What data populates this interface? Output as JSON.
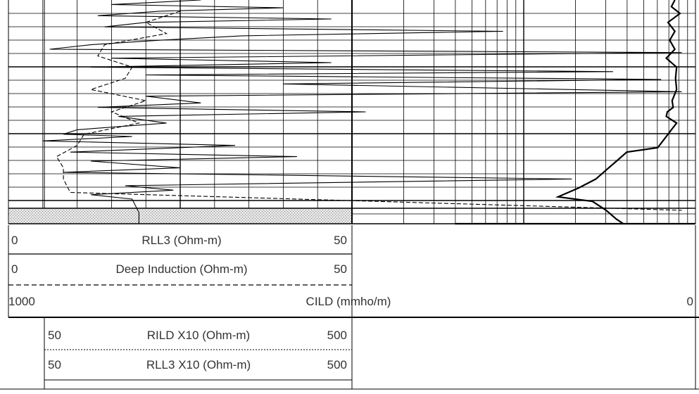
{
  "chart_data": {
    "type": "line",
    "title": "",
    "tracks": [
      {
        "name": "resistivity-track",
        "grid": true,
        "xlim": [
          0,
          50
        ],
        "series": [
          {
            "name": "RLL3 (Ohm-m)",
            "style": "solid",
            "points": [
              [
                28,
                0
              ],
              [
                15,
                0.02
              ],
              [
                40,
                0.035
              ],
              [
                22,
                0.05
              ],
              [
                13,
                0.07
              ],
              [
                47,
                0.085
              ],
              [
                20,
                0.1
              ],
              [
                14,
                0.12
              ],
              [
                72,
                0.14
              ],
              [
                34,
                0.16
              ],
              [
                22,
                0.18
              ],
              [
                12,
                0.2
              ],
              [
                6,
                0.22
              ],
              [
                98,
                0.235
              ],
              [
                15,
                0.26
              ],
              [
                47,
                0.28
              ],
              [
                12,
                0.3
              ],
              [
                88,
                0.32
              ],
              [
                20,
                0.335
              ],
              [
                95,
                0.355
              ],
              [
                40,
                0.375
              ],
              [
                98,
                0.41
              ],
              [
                20,
                0.43
              ],
              [
                28,
                0.46
              ],
              [
                13,
                0.48
              ],
              [
                52,
                0.5
              ],
              [
                16,
                0.52
              ],
              [
                23,
                0.55
              ],
              [
                10,
                0.58
              ],
              [
                8,
                0.6
              ],
              [
                18,
                0.61
              ],
              [
                5,
                0.63
              ],
              [
                33,
                0.65
              ],
              [
                9,
                0.68
              ],
              [
                42,
                0.7
              ],
              [
                12,
                0.72
              ],
              [
                25,
                0.75
              ],
              [
                8,
                0.77
              ],
              [
                82,
                0.8
              ],
              [
                17,
                0.83
              ],
              [
                24,
                0.85
              ],
              [
                12,
                0.87
              ],
              [
                18,
                0.89
              ],
              [
                19,
                0.95
              ],
              [
                19,
                1
              ]
            ]
          },
          {
            "name": "Deep Induction (Ohm-m)",
            "style": "dashed",
            "points": [
              [
                25,
                0.05
              ],
              [
                20,
                0.1
              ],
              [
                23,
                0.15
              ],
              [
                14,
                0.2
              ],
              [
                13,
                0.25
              ],
              [
                18,
                0.3
              ],
              [
                17,
                0.35
              ],
              [
                12,
                0.4
              ],
              [
                20,
                0.45
              ],
              [
                15,
                0.5
              ],
              [
                19,
                0.55
              ],
              [
                11,
                0.6
              ],
              [
                10,
                0.65
              ],
              [
                7,
                0.7
              ],
              [
                8,
                0.75
              ],
              [
                8,
                0.8
              ],
              [
                9,
                0.86
              ],
              [
                98,
                0.94
              ]
            ]
          }
        ]
      },
      {
        "name": "conductivity-track",
        "grid": true,
        "xlim": [
          1000,
          0
        ],
        "series": [
          {
            "name": "CILD (mmho/m)",
            "style": "solid",
            "points": [
              [
                60,
                0
              ],
              [
                70,
                0.03
              ],
              [
                45,
                0.06
              ],
              [
                80,
                0.1
              ],
              [
                60,
                0.14
              ],
              [
                75,
                0.18
              ],
              [
                60,
                0.22
              ],
              [
                85,
                0.26
              ],
              [
                55,
                0.3
              ],
              [
                58,
                0.35
              ],
              [
                55,
                0.4
              ],
              [
                68,
                0.45
              ],
              [
                65,
                0.48
              ],
              [
                82,
                0.5
              ],
              [
                85,
                0.52
              ],
              [
                55,
                0.55
              ],
              [
                70,
                0.58
              ],
              [
                90,
                0.62
              ],
              [
                110,
                0.66
              ],
              [
                200,
                0.68
              ],
              [
                230,
                0.72
              ],
              [
                260,
                0.76
              ],
              [
                290,
                0.8
              ],
              [
                340,
                0.84
              ],
              [
                400,
                0.88
              ],
              [
                300,
                0.9
              ],
              [
                260,
                0.94
              ],
              [
                230,
                0.98
              ],
              [
                210,
                1.02
              ],
              [
                430,
                1.06
              ],
              [
                700,
                1.1
              ],
              [
                560,
                1.14
              ],
              [
                340,
                1.18
              ],
              [
                350,
                1.22
              ],
              [
                340,
                1.26
              ],
              [
                350,
                1.3
              ],
              [
                0,
                1.36
              ]
            ]
          }
        ]
      }
    ],
    "legend": [
      {
        "name": "RLL3 (Ohm-m)",
        "left": "0",
        "right": "50",
        "style": "solid"
      },
      {
        "name": "Deep Induction (Ohm-m)",
        "left": "0",
        "right": "50",
        "style": "dashed"
      },
      {
        "name": "CILD (mmho/m)",
        "left": "1000",
        "right": "0",
        "style": "solid"
      },
      {
        "name": "RILD X10 (Ohm-m)",
        "left": "50",
        "right": "500",
        "style": "dotted"
      },
      {
        "name": "RLL3 X10 (Ohm-m)",
        "left": "50",
        "right": "500",
        "style": "solid"
      }
    ]
  }
}
